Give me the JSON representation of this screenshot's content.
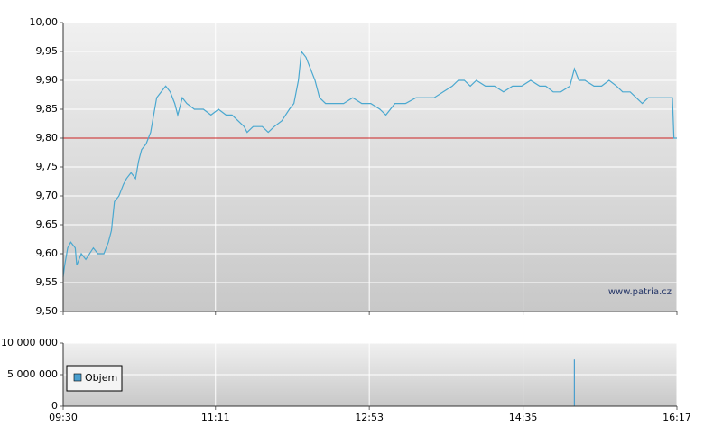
{
  "chart_data": [
    {
      "type": "line",
      "x": [
        "09:30",
        "09:31",
        "09:33",
        "09:35",
        "09:38",
        "09:39",
        "09:42",
        "09:45",
        "09:50",
        "09:53",
        "09:57",
        "10:00",
        "10:02",
        "10:04",
        "10:07",
        "10:10",
        "10:12",
        "10:15",
        "10:18",
        "10:20",
        "10:22",
        "10:25",
        "10:28",
        "10:30",
        "10:32",
        "10:35",
        "10:38",
        "10:41",
        "10:44",
        "10:46",
        "10:49",
        "10:52",
        "10:57",
        "11:03",
        "11:08",
        "11:13",
        "11:18",
        "11:22",
        "11:26",
        "11:30",
        "11:32",
        "11:36",
        "11:42",
        "11:46",
        "11:50",
        "11:55",
        "12:00",
        "12:03",
        "12:06",
        "12:08",
        "12:11",
        "12:14",
        "12:17",
        "12:20",
        "12:24",
        "12:30",
        "12:36",
        "12:42",
        "12:48",
        "12:54",
        "13:00",
        "13:04",
        "13:10",
        "13:17",
        "13:24",
        "13:30",
        "13:36",
        "13:42",
        "13:48",
        "13:52",
        "13:56",
        "14:00",
        "14:04",
        "14:10",
        "14:16",
        "14:22",
        "14:28",
        "14:34",
        "14:40",
        "14:46",
        "14:50",
        "14:55",
        "15:00",
        "15:06",
        "15:09",
        "15:12",
        "15:16",
        "15:22",
        "15:27",
        "15:32",
        "15:37",
        "15:41",
        "15:46",
        "15:50",
        "15:54",
        "15:58",
        "16:06",
        "16:14",
        "16:15",
        "16:17"
      ],
      "series": [
        {
          "color": "#4aa8d0",
          "values": [
            9.56,
            9.58,
            9.61,
            9.62,
            9.61,
            9.58,
            9.6,
            9.59,
            9.61,
            9.6,
            9.6,
            9.62,
            9.64,
            9.69,
            9.7,
            9.72,
            9.73,
            9.74,
            9.73,
            9.76,
            9.78,
            9.79,
            9.81,
            9.84,
            9.87,
            9.88,
            9.89,
            9.88,
            9.86,
            9.84,
            9.87,
            9.86,
            9.85,
            9.85,
            9.84,
            9.85,
            9.84,
            9.84,
            9.83,
            9.82,
            9.81,
            9.82,
            9.82,
            9.81,
            9.82,
            9.83,
            9.85,
            9.86,
            9.9,
            9.95,
            9.94,
            9.92,
            9.9,
            9.87,
            9.86,
            9.86,
            9.86,
            9.87,
            9.86,
            9.86,
            9.85,
            9.84,
            9.86,
            9.86,
            9.87,
            9.87,
            9.87,
            9.88,
            9.89,
            9.9,
            9.9,
            9.89,
            9.9,
            9.89,
            9.89,
            9.88,
            9.89,
            9.89,
            9.9,
            9.89,
            9.89,
            9.88,
            9.88,
            9.89,
            9.92,
            9.9,
            9.9,
            9.89,
            9.89,
            9.9,
            9.89,
            9.88,
            9.88,
            9.87,
            9.86,
            9.87,
            9.87,
            9.87,
            9.8,
            9.8
          ]
        }
      ],
      "xlim": [
        "09:30",
        "16:17"
      ],
      "ylim": [
        9.5,
        10.0
      ],
      "yticks": [
        {
          "value": 9.5,
          "label": "9,50"
        },
        {
          "value": 9.55,
          "label": "9,55"
        },
        {
          "value": 9.6,
          "label": "9,60"
        },
        {
          "value": 9.65,
          "label": "9,65"
        },
        {
          "value": 9.7,
          "label": "9,70"
        },
        {
          "value": 9.75,
          "label": "9,75"
        },
        {
          "value": 9.8,
          "label": "9,80"
        },
        {
          "value": 9.85,
          "label": "9,85"
        },
        {
          "value": 9.9,
          "label": "9,90"
        },
        {
          "value": 9.95,
          "label": "9,95"
        },
        {
          "value": 10.0,
          "label": "10,00"
        }
      ],
      "reference_line": {
        "value": 9.8,
        "color": "#cc2222"
      },
      "annotation": "www.patria.cz",
      "grid": true
    },
    {
      "type": "bar",
      "x": [
        "15:09"
      ],
      "series": [
        {
          "name": "Objem",
          "color": "#4a9fcf",
          "values": [
            7400000
          ]
        }
      ],
      "xlim": [
        "09:30",
        "16:17"
      ],
      "xticks": [
        "09:30",
        "11:11",
        "12:53",
        "14:35",
        "16:17"
      ],
      "ylim": [
        0,
        10000000
      ],
      "yticks": [
        0,
        {
          "value": 5000000,
          "label": "5 000 000"
        },
        {
          "value": 10000000,
          "label": "10 000 000"
        }
      ],
      "grid": true
    }
  ]
}
